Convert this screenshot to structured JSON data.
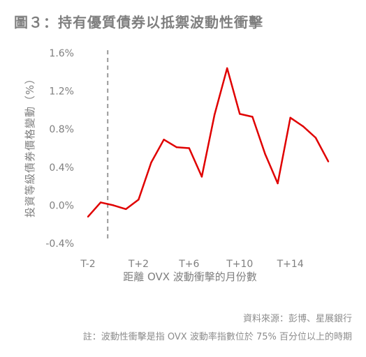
{
  "title": "圖３：持有優質債券以抵禦波動性衝擊",
  "source": "資料來源：彭博、星展銀行",
  "note": "註：波動性衝擊是指 OVX 波動率指數位於 75% 百分位以上的時期",
  "chart_data": {
    "type": "line",
    "xlabel": "距離 OVX 波動衝擊的月份數",
    "ylabel": "投資等級債券價格變動（%）",
    "x": [
      "T-2",
      "T-1",
      "T",
      "T+1",
      "T+2",
      "T+3",
      "T+4",
      "T+5",
      "T+6",
      "T+7",
      "T+8",
      "T+9",
      "T+10",
      "T+11",
      "T+12",
      "T+13",
      "T+14",
      "T+15",
      "T+16",
      "T+17"
    ],
    "xtick_labels": [
      "T-2",
      "T+2",
      "T+6",
      "T+10",
      "T+14"
    ],
    "series": [
      {
        "values": [
          -0.12,
          0.03,
          0.0,
          -0.04,
          0.06,
          0.45,
          0.69,
          0.61,
          0.6,
          0.3,
          0.95,
          1.44,
          0.96,
          0.93,
          0.54,
          0.23,
          0.92,
          0.83,
          0.71,
          0.46
        ]
      }
    ],
    "yticks": [
      "1.6%",
      "1.2%",
      "0.8%",
      "0.4%",
      "0.0%",
      "-0.4%"
    ],
    "ylim": [
      -0.4,
      1.6
    ],
    "event_marker": "T",
    "colors": {
      "line": "#e00000",
      "event_marker": "#999999"
    },
    "grid": false
  }
}
